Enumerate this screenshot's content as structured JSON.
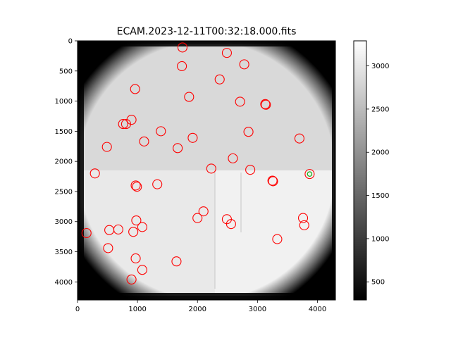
{
  "chart_data": {
    "type": "heatmap",
    "title": "ECAM.2023-12-11T00:32:18.000.fits",
    "xlabel": "",
    "ylabel": "",
    "xlim": [
      0,
      4300
    ],
    "ylim": [
      4300,
      0
    ],
    "x_ticks": [
      "0",
      "1000",
      "2000",
      "3000",
      "4000"
    ],
    "y_ticks": [
      "0",
      "500",
      "1000",
      "1500",
      "2000",
      "2500",
      "3000",
      "3500",
      "4000"
    ],
    "colorbar": {
      "range": [
        290,
        3290
      ],
      "ticks": [
        "500",
        "1000",
        "1500",
        "2000",
        "2500",
        "3000"
      ],
      "colormap": "gray"
    },
    "marker_color": "#ff0000",
    "highlight_color": "#00aa00",
    "detections": [
      {
        "x": 1750,
        "y": 110
      },
      {
        "x": 2490,
        "y": 200
      },
      {
        "x": 1740,
        "y": 420
      },
      {
        "x": 2780,
        "y": 390
      },
      {
        "x": 2370,
        "y": 640
      },
      {
        "x": 960,
        "y": 800
      },
      {
        "x": 1860,
        "y": 930
      },
      {
        "x": 2710,
        "y": 1010
      },
      {
        "x": 3130,
        "y": 1050
      },
      {
        "x": 3140,
        "y": 1060
      },
      {
        "x": 900,
        "y": 1310
      },
      {
        "x": 760,
        "y": 1380
      },
      {
        "x": 810,
        "y": 1380
      },
      {
        "x": 1390,
        "y": 1500
      },
      {
        "x": 2850,
        "y": 1510
      },
      {
        "x": 1920,
        "y": 1610
      },
      {
        "x": 3700,
        "y": 1620
      },
      {
        "x": 1110,
        "y": 1670
      },
      {
        "x": 490,
        "y": 1760
      },
      {
        "x": 1670,
        "y": 1780
      },
      {
        "x": 2590,
        "y": 1950
      },
      {
        "x": 2230,
        "y": 2120
      },
      {
        "x": 2880,
        "y": 2140
      },
      {
        "x": 290,
        "y": 2200
      },
      {
        "x": 3870,
        "y": 2210
      },
      {
        "x": 3250,
        "y": 2320
      },
      {
        "x": 3260,
        "y": 2330
      },
      {
        "x": 970,
        "y": 2400
      },
      {
        "x": 990,
        "y": 2420
      },
      {
        "x": 1330,
        "y": 2380
      },
      {
        "x": 2100,
        "y": 2830
      },
      {
        "x": 2000,
        "y": 2940
      },
      {
        "x": 3760,
        "y": 2940
      },
      {
        "x": 980,
        "y": 2980
      },
      {
        "x": 2490,
        "y": 2960
      },
      {
        "x": 2560,
        "y": 3040
      },
      {
        "x": 3780,
        "y": 3060
      },
      {
        "x": 1080,
        "y": 3090
      },
      {
        "x": 680,
        "y": 3130
      },
      {
        "x": 530,
        "y": 3140
      },
      {
        "x": 930,
        "y": 3170
      },
      {
        "x": 150,
        "y": 3190
      },
      {
        "x": 3330,
        "y": 3290
      },
      {
        "x": 510,
        "y": 3440
      },
      {
        "x": 970,
        "y": 3610
      },
      {
        "x": 1650,
        "y": 3660
      },
      {
        "x": 1080,
        "y": 3800
      },
      {
        "x": 900,
        "y": 3960
      }
    ],
    "highlighted": {
      "x": 3870,
      "y": 2210
    }
  }
}
